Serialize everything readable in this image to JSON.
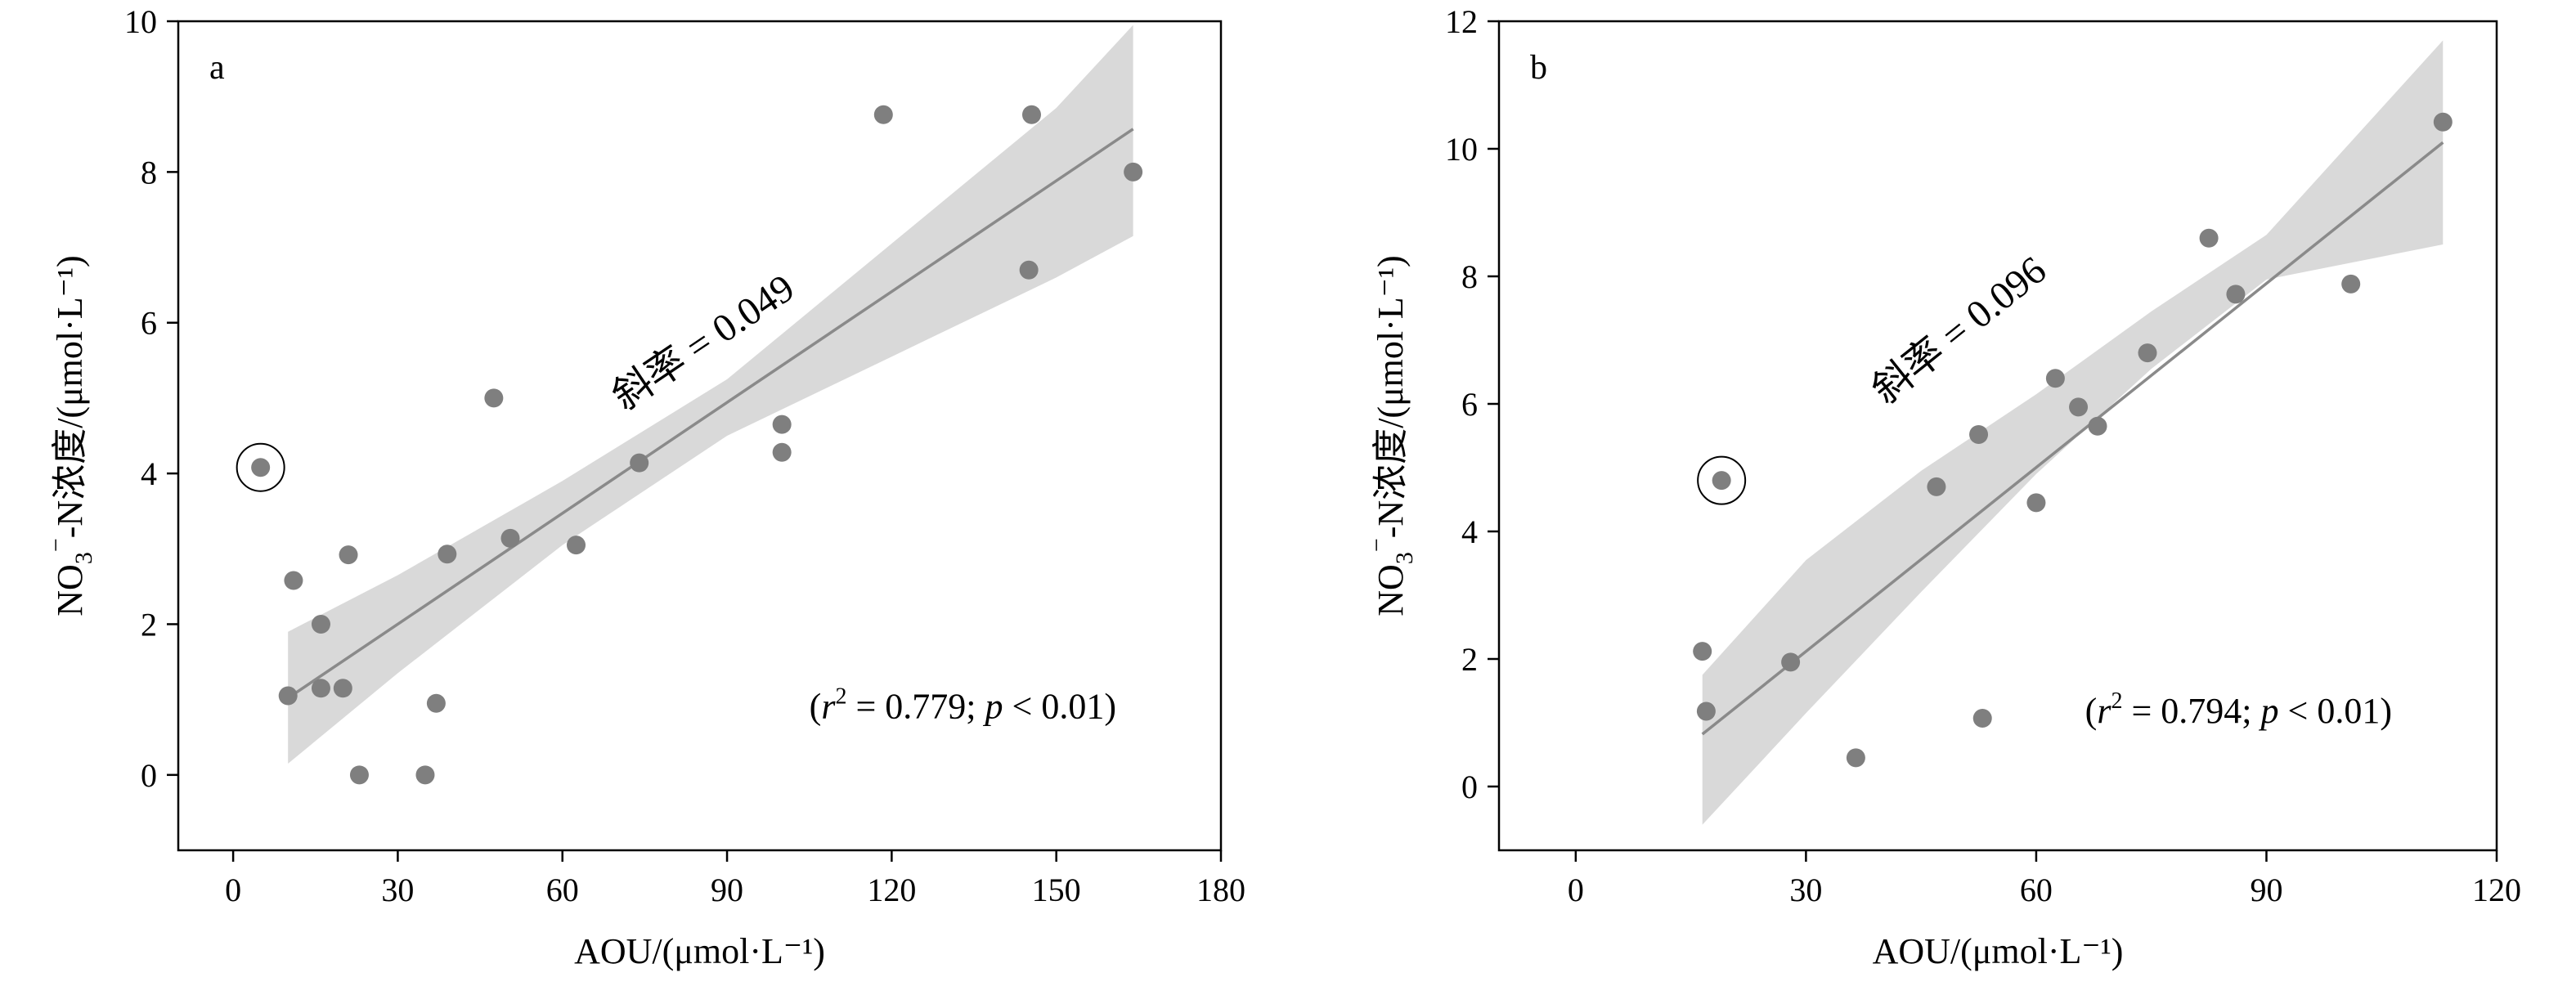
{
  "chart_data": [
    {
      "type": "scatter",
      "panel_label": "a",
      "xlabel": "AOU/(μmol·L⁻¹)",
      "ylabel": {
        "prefix": "NO",
        "sub": "3",
        "sup": "−",
        "suffix": "-N浓度/(μmol·L⁻¹)"
      },
      "xlim": [
        -10,
        180
      ],
      "ylim": [
        -1,
        10
      ],
      "xticks": [
        0,
        30,
        60,
        90,
        120,
        150,
        180
      ],
      "yticks": [
        0,
        2,
        4,
        6,
        8,
        10
      ],
      "points": [
        [
          10,
          1.05
        ],
        [
          11,
          2.58
        ],
        [
          16,
          2.0
        ],
        [
          16,
          1.15
        ],
        [
          20,
          1.15
        ],
        [
          21,
          2.92
        ],
        [
          23,
          0.0
        ],
        [
          35,
          0.0
        ],
        [
          37,
          0.95
        ],
        [
          39,
          2.93
        ],
        [
          47.5,
          5.0
        ],
        [
          50.5,
          3.14
        ],
        [
          62.5,
          3.05
        ],
        [
          74,
          4.14
        ],
        [
          100,
          4.65
        ],
        [
          100,
          4.28
        ],
        [
          118.5,
          8.76
        ],
        [
          145,
          6.7
        ],
        [
          145.5,
          8.76
        ],
        [
          164,
          8.0
        ]
      ],
      "outlier": [
        5,
        4.08
      ],
      "fit_line": {
        "x": [
          10,
          164
        ],
        "y": [
          1.02,
          8.57
        ]
      },
      "confidence_band": {
        "x": [
          10,
          30,
          60,
          90,
          120,
          150,
          164
        ],
        "upper": [
          1.9,
          2.65,
          3.9,
          5.25,
          7.05,
          8.85,
          9.95
        ],
        "lower": [
          0.15,
          1.35,
          3.05,
          4.5,
          5.55,
          6.6,
          7.15
        ]
      },
      "slope_prefix": "斜率",
      "slope_value": "0.049",
      "slope_anchor": [
        87,
        5.6
      ],
      "stats_r2": "0.779",
      "stats_p": "0.01"
    },
    {
      "type": "scatter",
      "panel_label": "b",
      "xlabel": "AOU/(μmol·L⁻¹)",
      "ylabel": {
        "prefix": "NO",
        "sub": "3",
        "sup": "−",
        "suffix": "-N浓度/(μmol·L⁻¹)"
      },
      "xlim": [
        -10,
        120
      ],
      "ylim": [
        -1,
        12
      ],
      "xticks": [
        0,
        30,
        60,
        90,
        120
      ],
      "yticks": [
        0,
        2,
        4,
        6,
        8,
        10,
        12
      ],
      "points": [
        [
          16.5,
          2.12
        ],
        [
          17,
          1.18
        ],
        [
          28,
          1.95
        ],
        [
          36.5,
          0.45
        ],
        [
          47,
          4.7
        ],
        [
          52.5,
          5.52
        ],
        [
          53,
          1.07
        ],
        [
          60,
          4.45
        ],
        [
          62.5,
          6.4
        ],
        [
          65.5,
          5.95
        ],
        [
          68,
          5.65
        ],
        [
          74.5,
          6.8
        ],
        [
          82.5,
          8.6
        ],
        [
          86,
          7.72
        ],
        [
          101,
          7.88
        ],
        [
          113,
          10.42
        ]
      ],
      "outlier": [
        19,
        4.8
      ],
      "fit_line": {
        "x": [
          16.5,
          113
        ],
        "y": [
          0.82,
          10.1
        ]
      },
      "confidence_band": {
        "x": [
          16.5,
          30,
          45,
          60,
          75,
          90,
          113
        ],
        "upper": [
          1.75,
          3.55,
          4.95,
          6.15,
          7.45,
          8.65,
          11.7
        ],
        "lower": [
          -0.6,
          1.15,
          3.05,
          4.9,
          6.55,
          7.95,
          8.5
        ]
      },
      "slope_prefix": "斜率",
      "slope_value": "0.096",
      "slope_anchor": [
        51,
        7.0
      ],
      "stats_r2": "0.794",
      "stats_p": "0.01"
    }
  ],
  "colors": {
    "point": "#7f7f7f",
    "line": "#8a8a8a",
    "band": "#d9d9d9",
    "axis": "#000000"
  }
}
